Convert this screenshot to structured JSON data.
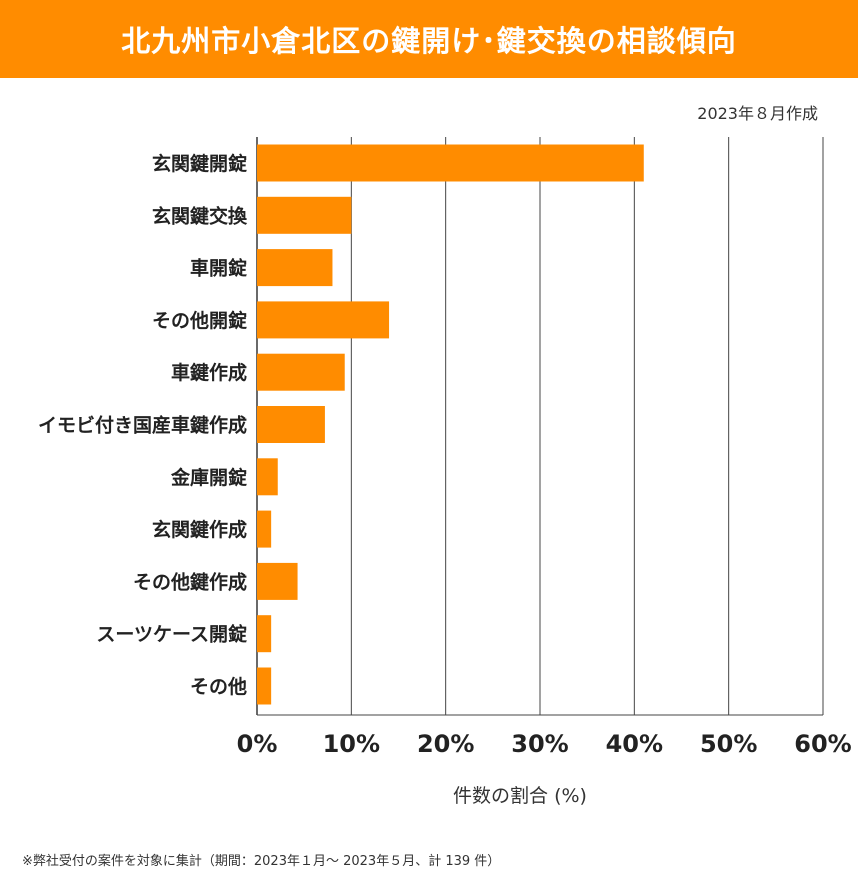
{
  "header": {
    "title": "北九州市小倉北区の鍵開け･鍵交換の相談傾向",
    "date": "2023年８月作成"
  },
  "colors": {
    "accent": "#ff8c00",
    "grid": "#444444"
  },
  "chart_data": {
    "type": "bar",
    "orientation": "horizontal",
    "categories": [
      "玄関鍵開錠",
      "玄関鍵交換",
      "車開錠",
      "その他開錠",
      "車鍵作成",
      "イモビ付き国産車鍵作成",
      "金庫開錠",
      "玄関鍵作成",
      "その他鍵作成",
      "スーツケース開錠",
      "その他"
    ],
    "values": [
      41,
      10,
      8,
      14,
      9.3,
      7.2,
      2.2,
      1.5,
      4.3,
      1.5,
      1.5
    ],
    "xlim": [
      0,
      60
    ],
    "ticks": [
      0,
      10,
      20,
      30,
      40,
      50,
      60
    ],
    "tick_labels": [
      "0%",
      "10%",
      "20%",
      "30%",
      "40%",
      "50%",
      "60%"
    ],
    "xlabel": "件数の割合 (%)",
    "ylabel": "",
    "grid": true
  },
  "footnote": "※弊社受付の案件を対象に集計（期間：2023年１月～ 2023年５月、計 139 件）"
}
